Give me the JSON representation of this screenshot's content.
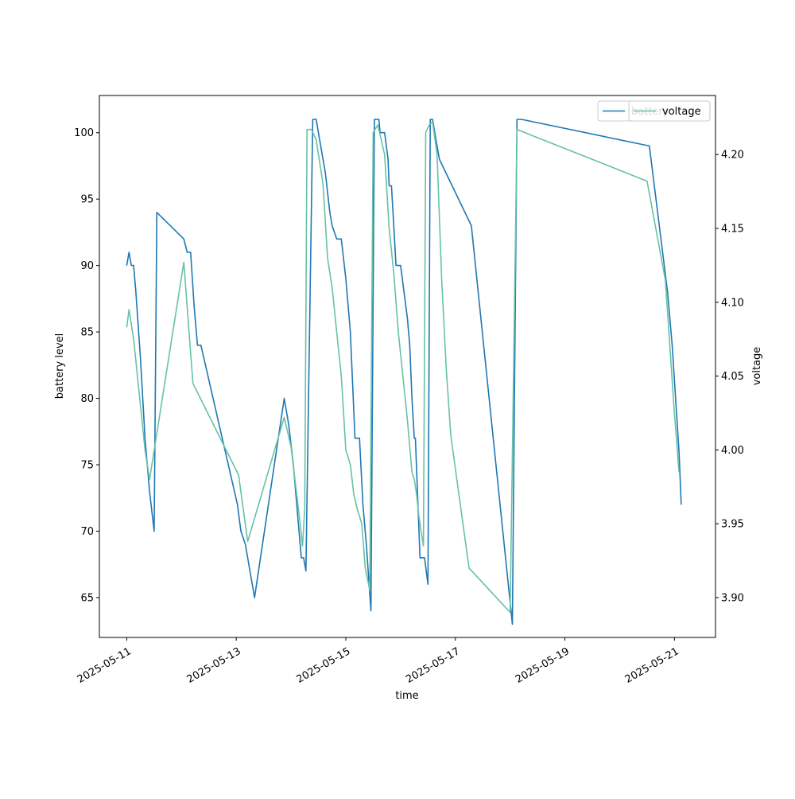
{
  "chart_data": {
    "type": "line",
    "xlabel": "time",
    "ylabel_left": "battery level",
    "ylabel_right": "voltage",
    "x_ticks": [
      "2025-05-11",
      "2025-05-13",
      "2025-05-15",
      "2025-05-17",
      "2025-05-19",
      "2025-05-21"
    ],
    "y_left_ticks": [
      65,
      70,
      75,
      80,
      85,
      90,
      95,
      100
    ],
    "y_right_ticks": [
      "3.90",
      "3.95",
      "4.00",
      "4.05",
      "4.10",
      "4.15",
      "4.20"
    ],
    "y_left_range": [
      62.0,
      102.8
    ],
    "y_right_range": [
      3.873,
      4.24
    ],
    "x_range": [
      "2025-05-10 12:00",
      "2025-05-21 18:00"
    ],
    "grid": false,
    "legend_placement": "upper-right, two legends overlapping",
    "series": [
      {
        "name": "battery",
        "axis": "left",
        "color": "#1f77b4",
        "x": [
          "2025-05-11 00:00",
          "2025-05-11 01:00",
          "2025-05-11 02:00",
          "2025-05-11 03:00",
          "2025-05-11 04:00",
          "2025-05-11 06:00",
          "2025-05-11 08:00",
          "2025-05-11 10:00",
          "2025-05-11 12:00",
          "2025-05-11 13:12",
          "2025-05-12 01:00",
          "2025-05-12 02:30",
          "2025-05-12 04:00",
          "2025-05-12 05:30",
          "2025-05-12 07:00",
          "2025-05-12 08:30",
          "2025-05-13 00:30",
          "2025-05-13 02:00",
          "2025-05-13 04:00",
          "2025-05-13 06:00",
          "2025-05-13 08:00",
          "2025-05-13 21:00",
          "2025-05-13 23:00",
          "2025-05-14 01:00",
          "2025-05-14 03:00",
          "2025-05-14 04:30",
          "2025-05-14 05:30",
          "2025-05-14 06:30",
          "2025-05-14 09:30",
          "2025-05-14 11:00",
          "2025-05-14 13:00",
          "2025-05-14 15:00",
          "2025-05-14 17:00",
          "2025-05-14 18:00",
          "2025-05-14 20:00",
          "2025-05-14 22:00",
          "2025-05-15 00:00",
          "2025-05-15 02:00",
          "2025-05-15 04:00",
          "2025-05-15 06:00",
          "2025-05-15 07:30",
          "2025-05-15 09:00",
          "2025-05-15 11:00",
          "2025-05-15 12:30",
          "2025-05-15 14:30",
          "2025-05-15 15:00",
          "2025-05-15 17:00",
          "2025-05-15 18:30",
          "2025-05-15 19:00",
          "2025-05-15 20:00",
          "2025-05-15 21:00",
          "2025-05-15 22:00",
          "2025-05-16 00:00",
          "2025-05-16 01:30",
          "2025-05-16 03:00",
          "2025-05-16 04:00",
          "2025-05-16 05:00",
          "2025-05-16 06:00",
          "2025-05-16 06:30",
          "2025-05-16 08:30",
          "2025-05-16 10:30",
          "2025-05-16 12:00",
          "2025-05-16 13:00",
          "2025-05-16 14:00",
          "2025-05-16 15:00",
          "2025-05-16 17:00",
          "2025-05-17 07:00",
          "2025-05-18 01:00",
          "2025-05-18 03:00",
          "2025-05-18 05:00",
          "2025-05-20 13:00",
          "2025-05-20 21:00",
          "2025-05-20 23:00",
          "2025-05-21 00:30",
          "2025-05-21 02:00",
          "2025-05-21 03:00"
        ],
        "values": [
          90,
          91,
          90,
          90,
          88,
          83,
          77,
          73,
          70,
          94,
          92,
          91,
          91,
          87,
          84,
          84,
          72,
          70,
          69,
          67,
          65,
          80,
          78,
          75,
          71,
          68,
          68,
          67,
          101,
          101,
          99,
          97,
          94,
          93,
          92,
          92,
          89,
          85,
          77,
          77,
          72,
          69,
          64,
          101,
          101,
          100,
          100,
          98,
          96,
          96,
          93,
          90,
          90,
          88,
          86,
          84,
          80,
          77,
          77,
          68,
          68,
          66,
          101,
          101,
          100,
          98,
          93,
          63,
          101,
          101,
          99,
          88,
          84,
          80,
          76,
          72
        ],
        "values_note": "battery level"
      },
      {
        "name": "voltage",
        "axis": "right",
        "color": "#66c2a5",
        "x": [
          "2025-05-11 00:00",
          "2025-05-11 01:00",
          "2025-05-11 02:00",
          "2025-05-11 03:00",
          "2025-05-11 06:00",
          "2025-05-11 08:00",
          "2025-05-11 10:00",
          "2025-05-12 01:00",
          "2025-05-12 05:00",
          "2025-05-13 01:00",
          "2025-05-13 05:00",
          "2025-05-13 21:00",
          "2025-05-14 00:00",
          "2025-05-14 04:00",
          "2025-05-14 05:00",
          "2025-05-14 06:00",
          "2025-05-14 07:00",
          "2025-05-14 09:00",
          "2025-05-14 11:00",
          "2025-05-14 14:00",
          "2025-05-14 16:00",
          "2025-05-14 18:00",
          "2025-05-14 20:00",
          "2025-05-14 22:00",
          "2025-05-15 00:00",
          "2025-05-15 02:00",
          "2025-05-15 03:30",
          "2025-05-15 05:00",
          "2025-05-15 07:00",
          "2025-05-15 08:30",
          "2025-05-15 10:30",
          "2025-05-15 12:00",
          "2025-05-15 14:00",
          "2025-05-15 17:00",
          "2025-05-15 19:00",
          "2025-05-15 21:00",
          "2025-05-15 23:00",
          "2025-05-16 01:00",
          "2025-05-16 03:00",
          "2025-05-16 05:00",
          "2025-05-16 06:00",
          "2025-05-16 07:00",
          "2025-05-16 08:00",
          "2025-05-16 09:00",
          "2025-05-16 10:00",
          "2025-05-16 11:00",
          "2025-05-16 12:30",
          "2025-05-16 14:00",
          "2025-05-16 16:00",
          "2025-05-16 18:00",
          "2025-05-16 20:00",
          "2025-05-16 22:00",
          "2025-05-17 06:00",
          "2025-05-18 00:00",
          "2025-05-18 03:00",
          "2025-05-20 12:00",
          "2025-05-20 20:00",
          "2025-05-21 00:00",
          "2025-05-21 02:00"
        ],
        "values": [
          4.083,
          4.095,
          4.085,
          4.075,
          4.03,
          4.0,
          3.98,
          4.127,
          4.045,
          3.983,
          3.938,
          4.022,
          4.002,
          3.95,
          3.935,
          3.96,
          4.217,
          4.217,
          4.21,
          4.18,
          4.13,
          4.11,
          4.08,
          4.05,
          4.0,
          3.99,
          3.97,
          3.96,
          3.95,
          3.92,
          3.905,
          4.215,
          4.22,
          4.2,
          4.15,
          4.12,
          4.08,
          4.05,
          4.02,
          3.985,
          3.98,
          3.97,
          3.955,
          3.945,
          3.935,
          4.215,
          4.22,
          4.222,
          4.2,
          4.115,
          4.055,
          4.01,
          3.92,
          3.89,
          4.217,
          4.182,
          4.115,
          4.025,
          3.985
        ],
        "values_note": "voltage"
      }
    ],
    "legends": [
      {
        "entries": [
          {
            "label": "battery",
            "color": "#1f77b4"
          }
        ]
      },
      {
        "entries": [
          {
            "label": "voltage",
            "color": "#66c2a5"
          }
        ]
      }
    ]
  }
}
